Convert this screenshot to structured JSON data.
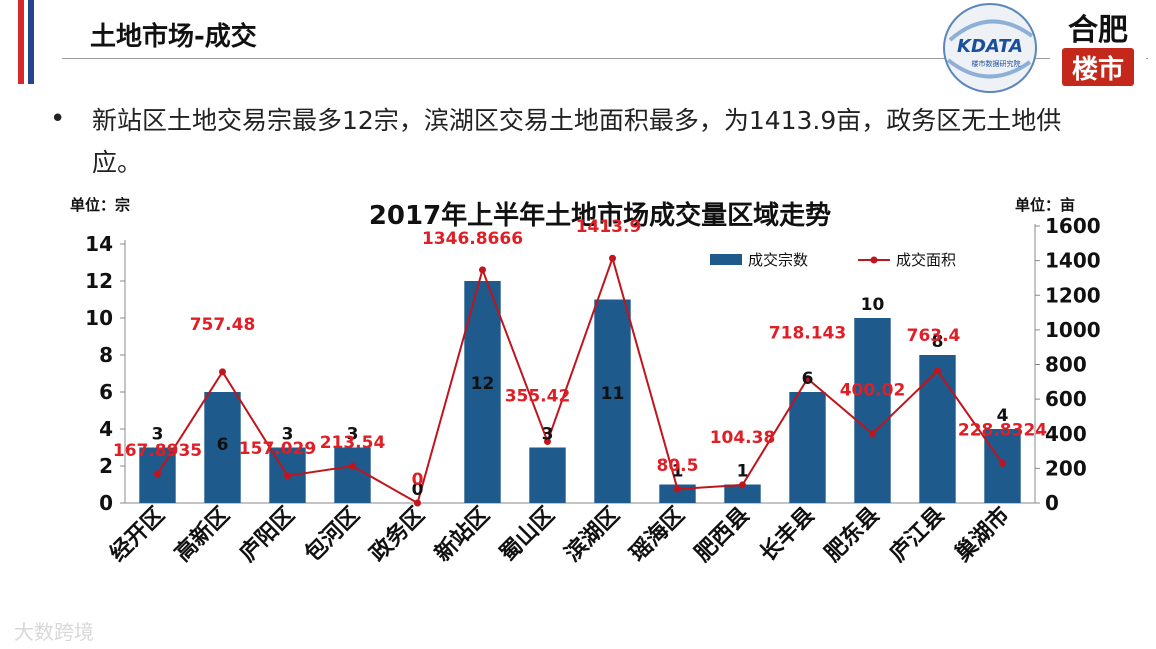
{
  "slide": {
    "title": "土地市场-成交",
    "bullet": "新站区土地交易宗最多12宗，滨湖区交易土地面积最多，为1413.9亩，政务区无土地供应。",
    "watermark": "大数跨境",
    "logos": {
      "kdata": "KDATA",
      "kdata_sub": "楼市数据研究院",
      "hefei_top": "合肥",
      "hefei_bottom": "楼市"
    }
  },
  "colors": {
    "bar": "#1f5a8c",
    "line": "#c0151d",
    "area_label": "#e01e25",
    "accent_red": "#d7282d",
    "accent_blue": "#24458e",
    "hefei_red": "#c4281b"
  },
  "chart_data": {
    "type": "bar",
    "title": "2017年上半年土地市场成交量区域走势",
    "y_left_unit": "单位：宗",
    "y_right_unit": "单位：亩",
    "ylim": [
      0,
      14
    ],
    "y2lim": [
      0,
      1600
    ],
    "y_ticks": [
      0,
      2,
      4,
      6,
      8,
      10,
      12,
      14
    ],
    "y2_ticks": [
      0,
      200,
      400,
      600,
      800,
      1000,
      1200,
      1400,
      1600
    ],
    "categories": [
      "经开区",
      "高新区",
      "庐阳区",
      "包河区",
      "政务区",
      "新站区",
      "蜀山区",
      "滨湖区",
      "瑶海区",
      "肥西县",
      "长丰县",
      "肥东县",
      "庐江县",
      "巢湖市"
    ],
    "series": [
      {
        "name": "成交宗数",
        "type": "bar",
        "axis": "left",
        "values": [
          3,
          6,
          3,
          3,
          0,
          12,
          3,
          11,
          1,
          1,
          6,
          10,
          8,
          4
        ]
      },
      {
        "name": "成交面积",
        "type": "line",
        "axis": "right",
        "values": [
          167.8935,
          757.48,
          157.029,
          213.54,
          0,
          1346.8666,
          355.42,
          1413.9,
          80.5,
          104.38,
          718.143,
          400.02,
          763.4,
          228.8324
        ],
        "labels": [
          "167.8935",
          "757.48",
          "157.029",
          "213.54",
          "0",
          "1346.8666",
          "355.42",
          "1413.9",
          "80.5",
          "104.38",
          "718.143",
          "400.02",
          "763.4",
          "228.8324"
        ]
      }
    ],
    "legend": "top-right",
    "grid": false
  }
}
